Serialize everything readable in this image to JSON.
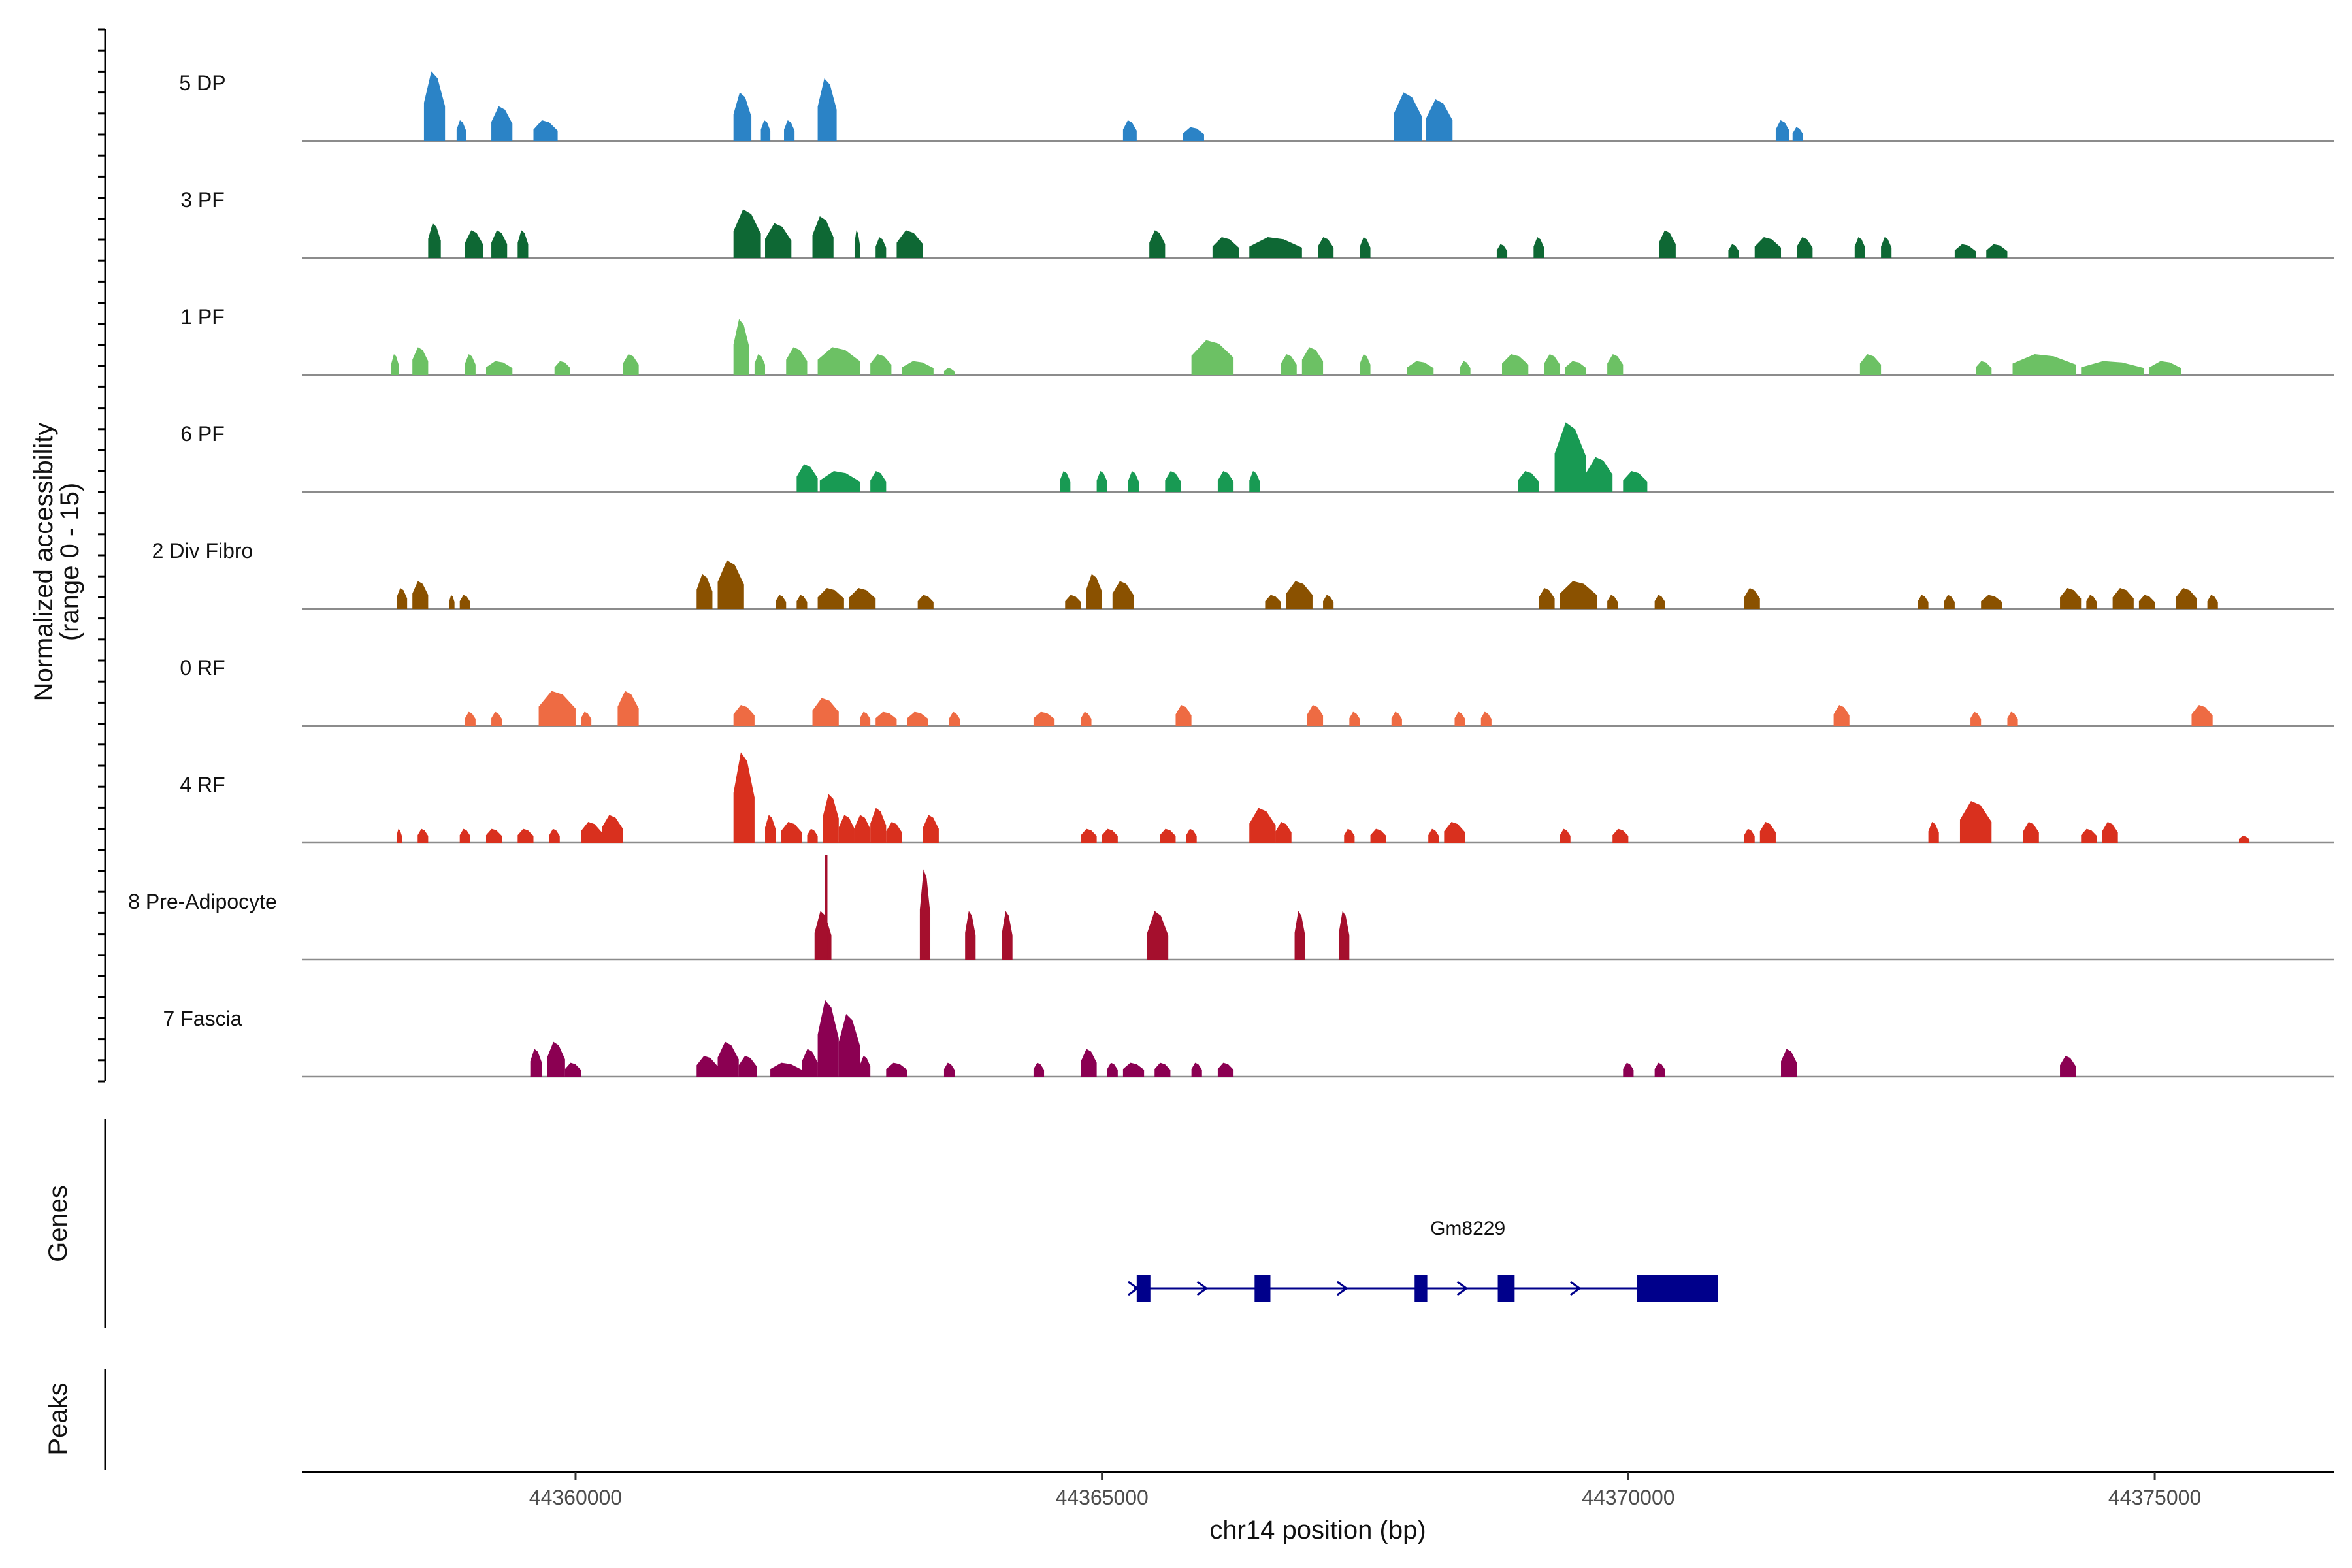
{
  "chart_data": {
    "type": "area",
    "title": "",
    "ylabel": "Normalized accessibility",
    "ylabel_sub": "(range 0 - 15)",
    "ylim": [
      0,
      15
    ],
    "xlabel": "chr14 position (bp)",
    "xlim": [
      44357400,
      44376700
    ],
    "x_ticks": [
      44360000,
      44365000,
      44370000,
      44375000
    ],
    "tracks": [
      {
        "name": "5 DP",
        "color": "#2b83c6",
        "peaks": [
          [
            44358560,
            44358760,
            10
          ],
          [
            44358870,
            44358960,
            3
          ],
          [
            44359200,
            44359400,
            5
          ],
          [
            44359600,
            44359830,
            3
          ],
          [
            44361500,
            44361670,
            7
          ],
          [
            44361760,
            44361850,
            3
          ],
          [
            44361980,
            44362080,
            3
          ],
          [
            44362300,
            44362480,
            9
          ],
          [
            44365200,
            44365330,
            3
          ],
          [
            44365770,
            44365970,
            2
          ],
          [
            44367770,
            44368040,
            7
          ],
          [
            44368080,
            44368330,
            6
          ],
          [
            44371400,
            44371530,
            3
          ],
          [
            44371560,
            44371660,
            2
          ]
        ]
      },
      {
        "name": "3 PF",
        "color": "#0e6834",
        "peaks": [
          [
            44358600,
            44358720,
            5
          ],
          [
            44358950,
            44359120,
            4
          ],
          [
            44359200,
            44359350,
            4
          ],
          [
            44359450,
            44359550,
            4
          ],
          [
            44361500,
            44361760,
            7
          ],
          [
            44361800,
            44362050,
            5
          ],
          [
            44362250,
            44362450,
            6
          ],
          [
            44362650,
            44362700,
            4
          ],
          [
            44362850,
            44362950,
            3
          ],
          [
            44363050,
            44363300,
            4
          ],
          [
            44365450,
            44365600,
            4
          ],
          [
            44366050,
            44366300,
            3
          ],
          [
            44366400,
            44366900,
            3
          ],
          [
            44367050,
            44367200,
            3
          ],
          [
            44367450,
            44367550,
            3
          ],
          [
            44368750,
            44368850,
            2
          ],
          [
            44369100,
            44369200,
            3
          ],
          [
            44370290,
            44370450,
            4
          ],
          [
            44370950,
            44371050,
            2
          ],
          [
            44371200,
            44371450,
            3
          ],
          [
            44371600,
            44371750,
            3
          ],
          [
            44372150,
            44372250,
            3
          ],
          [
            44372400,
            44372500,
            3
          ],
          [
            44373100,
            44373300,
            2
          ],
          [
            44373400,
            44373600,
            2
          ]
        ]
      },
      {
        "name": "1 PF",
        "color": "#6cc164",
        "peaks": [
          [
            44358250,
            44358320,
            3
          ],
          [
            44358450,
            44358600,
            4
          ],
          [
            44358950,
            44359050,
            3
          ],
          [
            44359150,
            44359400,
            2
          ],
          [
            44359800,
            44359950,
            2
          ],
          [
            44360450,
            44360600,
            3
          ],
          [
            44361500,
            44361650,
            8
          ],
          [
            44361700,
            44361800,
            3
          ],
          [
            44362000,
            44362200,
            4
          ],
          [
            44362300,
            44362700,
            4
          ],
          [
            44362800,
            44363000,
            3
          ],
          [
            44363100,
            44363400,
            2
          ],
          [
            44363500,
            44363600,
            1
          ],
          [
            44365850,
            44366250,
            5
          ],
          [
            44366700,
            44366850,
            3
          ],
          [
            44366900,
            44367100,
            4
          ],
          [
            44367450,
            44367550,
            3
          ],
          [
            44367900,
            44368150,
            2
          ],
          [
            44368400,
            44368500,
            2
          ],
          [
            44368800,
            44369050,
            3
          ],
          [
            44369200,
            44369350,
            3
          ],
          [
            44369400,
            44369600,
            2
          ],
          [
            44369800,
            44369950,
            3
          ],
          [
            44372200,
            44372400,
            3
          ],
          [
            44373300,
            44373450,
            2
          ],
          [
            44373650,
            44374250,
            3
          ],
          [
            44374300,
            44374900,
            2
          ],
          [
            44374950,
            44375250,
            2
          ]
        ]
      },
      {
        "name": "6 PF",
        "color": "#189a53",
        "peaks": [
          [
            44362100,
            44362300,
            4
          ],
          [
            44362320,
            44362700,
            3
          ],
          [
            44362800,
            44362950,
            3
          ],
          [
            44364600,
            44364700,
            3
          ],
          [
            44364950,
            44365050,
            3
          ],
          [
            44365250,
            44365350,
            3
          ],
          [
            44365600,
            44365750,
            3
          ],
          [
            44366100,
            44366250,
            3
          ],
          [
            44366400,
            44366500,
            3
          ],
          [
            44368950,
            44369150,
            3
          ],
          [
            44369300,
            44369600,
            10
          ],
          [
            44369600,
            44369850,
            5
          ],
          [
            44369950,
            44370180,
            3
          ]
        ]
      },
      {
        "name": "2 Div Fibro",
        "color": "#8a5100",
        "peaks": [
          [
            44358300,
            44358400,
            3
          ],
          [
            44358450,
            44358600,
            4
          ],
          [
            44358800,
            44358850,
            2
          ],
          [
            44358900,
            44359000,
            2
          ],
          [
            44361150,
            44361300,
            5
          ],
          [
            44361350,
            44361600,
            7
          ],
          [
            44361900,
            44362000,
            2
          ],
          [
            44362100,
            44362200,
            2
          ],
          [
            44362300,
            44362550,
            3
          ],
          [
            44362600,
            44362850,
            3
          ],
          [
            44363250,
            44363400,
            2
          ],
          [
            44364650,
            44364800,
            2
          ],
          [
            44364850,
            44365000,
            5
          ],
          [
            44365100,
            44365300,
            4
          ],
          [
            44366550,
            44366700,
            2
          ],
          [
            44366750,
            44367000,
            4
          ],
          [
            44367100,
            44367200,
            2
          ],
          [
            44369150,
            44369300,
            3
          ],
          [
            44369350,
            44369700,
            4
          ],
          [
            44369800,
            44369900,
            2
          ],
          [
            44370250,
            44370350,
            2
          ],
          [
            44371100,
            44371250,
            3
          ],
          [
            44372750,
            44372850,
            2
          ],
          [
            44373000,
            44373100,
            2
          ],
          [
            44373350,
            44373550,
            2
          ],
          [
            44374100,
            44374300,
            3
          ],
          [
            44374350,
            44374450,
            2
          ],
          [
            44374600,
            44374800,
            3
          ],
          [
            44374850,
            44375000,
            2
          ],
          [
            44375200,
            44375400,
            3
          ],
          [
            44375500,
            44375600,
            2
          ]
        ]
      },
      {
        "name": "0 RF",
        "color": "#ee6b43",
        "peaks": [
          [
            44358950,
            44359050,
            2
          ],
          [
            44359200,
            44359300,
            2
          ],
          [
            44359650,
            44360000,
            5
          ],
          [
            44360050,
            44360150,
            2
          ],
          [
            44360400,
            44360600,
            5
          ],
          [
            44361500,
            44361700,
            3
          ],
          [
            44362250,
            44362500,
            4
          ],
          [
            44362700,
            44362800,
            2
          ],
          [
            44362850,
            44363050,
            2
          ],
          [
            44363150,
            44363350,
            2
          ],
          [
            44363550,
            44363650,
            2
          ],
          [
            44364350,
            44364550,
            2
          ],
          [
            44364800,
            44364900,
            2
          ],
          [
            44365700,
            44365850,
            3
          ],
          [
            44366950,
            44367100,
            3
          ],
          [
            44367350,
            44367450,
            2
          ],
          [
            44367750,
            44367850,
            2
          ],
          [
            44368350,
            44368450,
            2
          ],
          [
            44368600,
            44368700,
            2
          ],
          [
            44371950,
            44372100,
            3
          ],
          [
            44373250,
            44373350,
            2
          ],
          [
            44373600,
            44373700,
            2
          ],
          [
            44375350,
            44375550,
            3
          ]
        ]
      },
      {
        "name": "4 RF",
        "color": "#d9301e",
        "peaks": [
          [
            44358300,
            44358350,
            2
          ],
          [
            44358500,
            44358600,
            2
          ],
          [
            44358900,
            44359000,
            2
          ],
          [
            44359150,
            44359300,
            2
          ],
          [
            44359450,
            44359600,
            2
          ],
          [
            44359750,
            44359850,
            2
          ],
          [
            44360050,
            44360250,
            3
          ],
          [
            44360250,
            44360450,
            4
          ],
          [
            44361500,
            44361700,
            13
          ],
          [
            44361800,
            44361900,
            4
          ],
          [
            44361950,
            44362150,
            3
          ],
          [
            44362200,
            44362300,
            2
          ],
          [
            44362350,
            44362500,
            7
          ],
          [
            44362500,
            44362650,
            4
          ],
          [
            44362650,
            44362800,
            4
          ],
          [
            44362800,
            44362950,
            5
          ],
          [
            44362950,
            44363100,
            3
          ],
          [
            44363300,
            44363450,
            4
          ],
          [
            44364800,
            44364950,
            2
          ],
          [
            44365000,
            44365150,
            2
          ],
          [
            44365550,
            44365700,
            2
          ],
          [
            44365800,
            44365900,
            2
          ],
          [
            44366400,
            44366650,
            5
          ],
          [
            44366650,
            44366800,
            3
          ],
          [
            44367300,
            44367400,
            2
          ],
          [
            44367550,
            44367700,
            2
          ],
          [
            44368100,
            44368200,
            2
          ],
          [
            44368250,
            44368450,
            3
          ],
          [
            44369350,
            44369450,
            2
          ],
          [
            44369850,
            44370000,
            2
          ],
          [
            44371100,
            44371200,
            2
          ],
          [
            44371250,
            44371400,
            3
          ],
          [
            44372850,
            44372950,
            3
          ],
          [
            44373150,
            44373450,
            6
          ],
          [
            44373750,
            44373900,
            3
          ],
          [
            44374300,
            44374450,
            2
          ],
          [
            44374500,
            44374650,
            3
          ],
          [
            44375800,
            44375900,
            1
          ]
        ]
      },
      {
        "name": "8 Pre-Adipocyte",
        "color": "#a50f2d",
        "peaks": [
          [
            44362270,
            44362430,
            7
          ],
          [
            44363270,
            44363370,
            13
          ],
          [
            44363700,
            44363800,
            7
          ],
          [
            44364050,
            44364150,
            7
          ],
          [
            44365430,
            44365630,
            7
          ],
          [
            44366830,
            44366930,
            7
          ],
          [
            44367250,
            44367350,
            7
          ]
        ],
        "spikes": [
          [
            44362380,
            15
          ]
        ]
      },
      {
        "name": "7 Fascia",
        "color": "#8b0052",
        "peaks": [
          [
            44359570,
            44359680,
            4
          ],
          [
            44359730,
            44359900,
            5
          ],
          [
            44359900,
            44360050,
            2
          ],
          [
            44361150,
            44361350,
            3
          ],
          [
            44361350,
            44361550,
            5
          ],
          [
            44361550,
            44361720,
            3
          ],
          [
            44361850,
            44362150,
            2
          ],
          [
            44362150,
            44362300,
            4
          ],
          [
            44362300,
            44362500,
            11
          ],
          [
            44362500,
            44362700,
            9
          ],
          [
            44362700,
            44362800,
            3
          ],
          [
            44362950,
            44363150,
            2
          ],
          [
            44363500,
            44363600,
            2
          ],
          [
            44364350,
            44364450,
            2
          ],
          [
            44364800,
            44364950,
            4
          ],
          [
            44365050,
            44365150,
            2
          ],
          [
            44365200,
            44365400,
            2
          ],
          [
            44365500,
            44365650,
            2
          ],
          [
            44365850,
            44365950,
            2
          ],
          [
            44366100,
            44366250,
            2
          ],
          [
            44369950,
            44370050,
            2
          ],
          [
            44370250,
            44370350,
            2
          ],
          [
            44371450,
            44371600,
            4
          ],
          [
            44374100,
            44374250,
            3
          ]
        ]
      }
    ],
    "genes": [
      {
        "name": "Gm8229",
        "start": 44365300,
        "end": 44370850,
        "strand": "+",
        "exons": [
          [
            44365330,
            44365460
          ],
          [
            44366450,
            44366600
          ],
          [
            44367970,
            44368090
          ],
          [
            44368760,
            44368920
          ],
          [
            44370080,
            44370850
          ]
        ]
      }
    ],
    "panels": {
      "genes_label": "Genes",
      "peaks_label": "Peaks"
    }
  }
}
